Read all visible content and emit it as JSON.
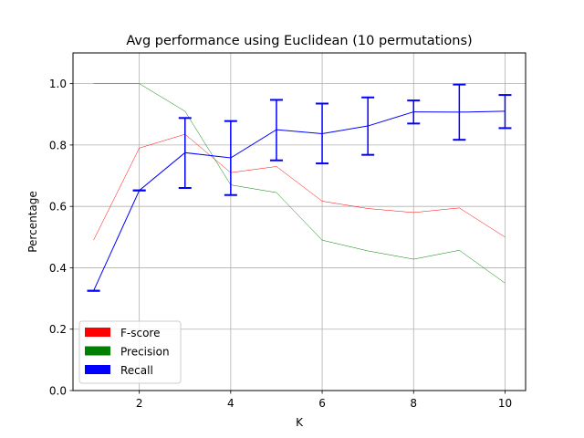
{
  "chart_data": {
    "type": "line",
    "title": "Avg performance using Euclidean (10 permutations)",
    "xlabel": "K",
    "ylabel": "Percentage",
    "xlim": [
      0.55,
      10.45
    ],
    "ylim": [
      0.0,
      1.1
    ],
    "xticks": [
      2,
      4,
      6,
      8,
      10
    ],
    "yticks": [
      0.0,
      0.2,
      0.4,
      0.6,
      0.8,
      1.0
    ],
    "xtick_labels": [
      "2",
      "4",
      "6",
      "8",
      "10"
    ],
    "ytick_labels": [
      "0.0",
      "0.2",
      "0.4",
      "0.6",
      "0.8",
      "1.0"
    ],
    "grid": true,
    "legend_position": "lower-left",
    "x": [
      1,
      2,
      3,
      4,
      5,
      6,
      7,
      8,
      9,
      10
    ],
    "series": [
      {
        "name": "F-score",
        "color": "#ff0000",
        "values": [
          0.49,
          0.79,
          0.835,
          0.71,
          0.73,
          0.617,
          0.593,
          0.58,
          0.595,
          0.5
        ]
      },
      {
        "name": "Precision",
        "color": "#008000",
        "values": [
          1.0,
          1.0,
          0.91,
          0.67,
          0.645,
          0.49,
          0.455,
          0.428,
          0.457,
          0.35
        ]
      },
      {
        "name": "Recall",
        "color": "#0000ff",
        "values": [
          0.325,
          0.652,
          0.775,
          0.758,
          0.85,
          0.837,
          0.862,
          0.908,
          0.907,
          0.91
        ],
        "error_low": [
          0.325,
          0.652,
          0.66,
          0.637,
          0.75,
          0.74,
          0.768,
          0.87,
          0.817,
          0.855
        ],
        "error_high": [
          0.325,
          0.652,
          0.888,
          0.878,
          0.947,
          0.935,
          0.955,
          0.945,
          0.997,
          0.963
        ]
      }
    ]
  }
}
